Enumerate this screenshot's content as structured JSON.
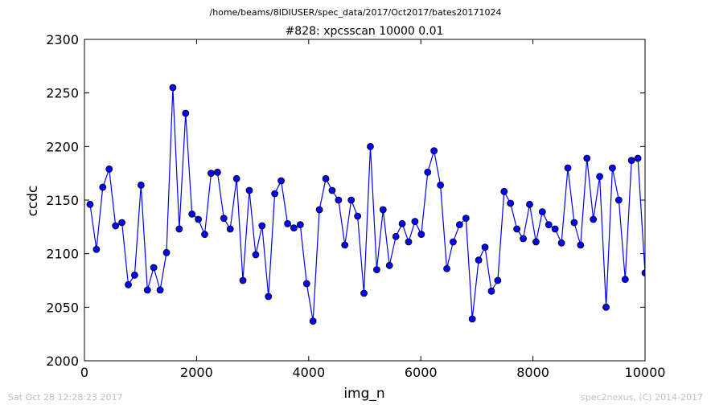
{
  "header": {
    "path": "/home/beams/8IDIUSER/spec_data/2017/Oct2017/bates20171024"
  },
  "footer": {
    "timestamp": "Sat Oct 28 12:28:23 2017",
    "credit": "spec2nexus, (C) 2014-2017"
  },
  "colors": {
    "series": "#0000ff",
    "marker_edge": "#000000",
    "axes": "#000000",
    "footer_text": "#c0c0c0"
  },
  "chart_data": {
    "type": "line",
    "title": "#828: xpcsscan 10000 0.01",
    "xlabel": "img_n",
    "ylabel": "ccdc",
    "xlim": [
      0,
      10000
    ],
    "ylim": [
      2000,
      2300
    ],
    "grid": false,
    "xticks": [
      0,
      2000,
      4000,
      6000,
      8000,
      10000
    ],
    "yticks": [
      2000,
      2050,
      2100,
      2150,
      2200,
      2250,
      2300
    ],
    "series": [
      {
        "marker": "circle",
        "x": [
          100,
          214,
          327,
          441,
          555,
          668,
          782,
          895,
          1009,
          1123,
          1236,
          1350,
          1464,
          1577,
          1691,
          1805,
          1918,
          2032,
          2145,
          2259,
          2373,
          2486,
          2600,
          2714,
          2827,
          2941,
          3055,
          3168,
          3282,
          3395,
          3509,
          3623,
          3736,
          3850,
          3964,
          4077,
          4191,
          4305,
          4418,
          4532,
          4645,
          4759,
          4873,
          4986,
          5100,
          5214,
          5327,
          5441,
          5555,
          5668,
          5782,
          5895,
          6009,
          6123,
          6236,
          6350,
          6464,
          6577,
          6691,
          6805,
          6918,
          7032,
          7145,
          7259,
          7373,
          7486,
          7600,
          7714,
          7827,
          7941,
          8055,
          8168,
          8282,
          8395,
          8509,
          8623,
          8736,
          8850,
          8964,
          9077,
          9191,
          9305,
          9418,
          9532,
          9645,
          9759,
          9873,
          10000
        ],
        "y": [
          2146,
          2104,
          2162,
          2179,
          2126,
          2129,
          2071,
          2080,
          2164,
          2066,
          2087,
          2066,
          2101,
          2255,
          2123,
          2231,
          2137,
          2132,
          2118,
          2175,
          2176,
          2133,
          2123,
          2170,
          2075,
          2159,
          2099,
          2126,
          2060,
          2156,
          2168,
          2128,
          2124,
          2127,
          2072,
          2037,
          2141,
          2170,
          2159,
          2150,
          2108,
          2150,
          2135,
          2063,
          2200,
          2085,
          2141,
          2089,
          2116,
          2128,
          2111,
          2130,
          2118,
          2176,
          2196,
          2164,
          2086,
          2111,
          2127,
          2133,
          2039,
          2094,
          2106,
          2065,
          2075,
          2158,
          2147,
          2123,
          2114,
          2146,
          2111,
          2139,
          2127,
          2123,
          2110,
          2180,
          2129,
          2108,
          2189,
          2132,
          2172,
          2050,
          2180,
          2150,
          2076,
          2187,
          2189,
          2082
        ]
      }
    ]
  }
}
